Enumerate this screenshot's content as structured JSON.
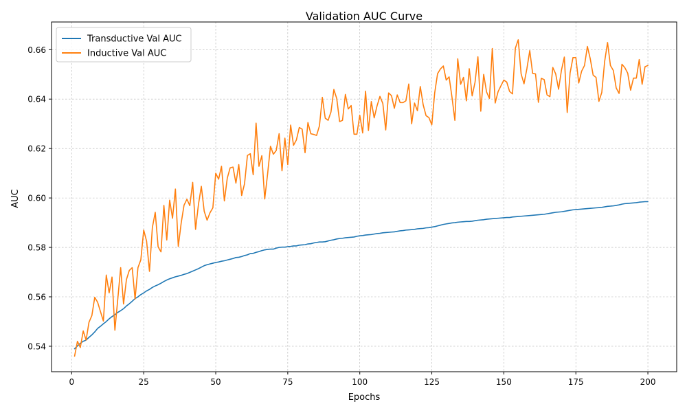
{
  "chart_data": {
    "type": "line",
    "title": "Validation AUC Curve",
    "xlabel": "Epochs",
    "ylabel": "AUC",
    "xlim": [
      -7,
      210
    ],
    "ylim": [
      0.5297,
      0.6712
    ],
    "xticks": [
      0,
      25,
      50,
      75,
      100,
      125,
      150,
      175,
      200
    ],
    "yticks": [
      0.54,
      0.56,
      0.58,
      0.6,
      0.62,
      0.64,
      0.66
    ],
    "ytick_labels": [
      "0.54",
      "0.56",
      "0.58",
      "0.60",
      "0.62",
      "0.64",
      "0.66"
    ],
    "grid": true,
    "legend_position": "upper-left",
    "series": [
      {
        "name": "Transductive Val AUC",
        "color": "#1f77b4",
        "x_start": 1,
        "x_step": 1,
        "values": [
          0.539,
          0.5401,
          0.5412,
          0.542,
          0.5425,
          0.5436,
          0.5446,
          0.5458,
          0.5472,
          0.5481,
          0.5491,
          0.55,
          0.5511,
          0.552,
          0.5528,
          0.5537,
          0.5544,
          0.5552,
          0.5563,
          0.5572,
          0.5582,
          0.5593,
          0.56,
          0.5609,
          0.5616,
          0.5624,
          0.563,
          0.5638,
          0.5644,
          0.5649,
          0.5655,
          0.5662,
          0.5668,
          0.5673,
          0.5677,
          0.5681,
          0.5684,
          0.5687,
          0.5691,
          0.5694,
          0.5699,
          0.5704,
          0.5709,
          0.5714,
          0.572,
          0.5726,
          0.573,
          0.5733,
          0.5736,
          0.5739,
          0.5741,
          0.5744,
          0.5746,
          0.5749,
          0.5752,
          0.5755,
          0.5759,
          0.576,
          0.5763,
          0.5767,
          0.577,
          0.5775,
          0.5776,
          0.578,
          0.5783,
          0.5787,
          0.579,
          0.5792,
          0.5793,
          0.5793,
          0.5797,
          0.58,
          0.5801,
          0.5801,
          0.5803,
          0.5804,
          0.5806,
          0.5806,
          0.5809,
          0.581,
          0.5811,
          0.5814,
          0.5815,
          0.5818,
          0.582,
          0.5822,
          0.5822,
          0.5823,
          0.5826,
          0.5829,
          0.5831,
          0.5834,
          0.5836,
          0.5837,
          0.5839,
          0.584,
          0.5841,
          0.5842,
          0.5845,
          0.5847,
          0.5848,
          0.585,
          0.5851,
          0.5852,
          0.5854,
          0.5856,
          0.5857,
          0.5859,
          0.586,
          0.5861,
          0.5862,
          0.5863,
          0.5865,
          0.5867,
          0.5868,
          0.587,
          0.5871,
          0.5872,
          0.5873,
          0.5875,
          0.5876,
          0.5877,
          0.5879,
          0.588,
          0.5882,
          0.5884,
          0.5887,
          0.589,
          0.5893,
          0.5895,
          0.5897,
          0.5899,
          0.59,
          0.5902,
          0.5903,
          0.5904,
          0.5905,
          0.5905,
          0.5906,
          0.5908,
          0.591,
          0.5911,
          0.5912,
          0.5914,
          0.5915,
          0.5916,
          0.5917,
          0.5918,
          0.5919,
          0.592,
          0.5921,
          0.5921,
          0.5923,
          0.5924,
          0.5925,
          0.5926,
          0.5927,
          0.5928,
          0.5929,
          0.593,
          0.5931,
          0.5932,
          0.5933,
          0.5934,
          0.5936,
          0.5938,
          0.594,
          0.5942,
          0.5943,
          0.5944,
          0.5946,
          0.5948,
          0.595,
          0.5952,
          0.5953,
          0.5954,
          0.5955,
          0.5956,
          0.5957,
          0.5958,
          0.5959,
          0.596,
          0.5961,
          0.5962,
          0.5964,
          0.5966,
          0.5967,
          0.5968,
          0.597,
          0.5972,
          0.5975,
          0.5977,
          0.5978,
          0.5979,
          0.598,
          0.5981,
          0.5983,
          0.5984,
          0.5985,
          0.5985
        ]
      },
      {
        "name": "Inductive Val AUC",
        "color": "#ff7f0e",
        "x_start": 1,
        "x_step": 1,
        "values": [
          0.536,
          0.542,
          0.5395,
          0.5462,
          0.5425,
          0.5497,
          0.5524,
          0.5598,
          0.5578,
          0.554,
          0.5502,
          0.5688,
          0.5616,
          0.568,
          0.5465,
          0.5591,
          0.5718,
          0.5571,
          0.567,
          0.5707,
          0.5718,
          0.5591,
          0.5718,
          0.575,
          0.587,
          0.5825,
          0.5703,
          0.588,
          0.5942,
          0.5802,
          0.5782,
          0.597,
          0.583,
          0.5991,
          0.5918,
          0.6036,
          0.5804,
          0.5898,
          0.5971,
          0.5995,
          0.5969,
          0.6063,
          0.5873,
          0.5974,
          0.6047,
          0.5946,
          0.591,
          0.594,
          0.596,
          0.61,
          0.6076,
          0.6128,
          0.5988,
          0.608,
          0.6122,
          0.6125,
          0.606,
          0.6135,
          0.601,
          0.6058,
          0.6172,
          0.6179,
          0.6094,
          0.6303,
          0.6128,
          0.6171,
          0.5996,
          0.6097,
          0.6209,
          0.6177,
          0.6192,
          0.626,
          0.611,
          0.6242,
          0.6135,
          0.6295,
          0.6213,
          0.6235,
          0.6285,
          0.6278,
          0.6183,
          0.6305,
          0.626,
          0.6257,
          0.6253,
          0.6292,
          0.6407,
          0.6323,
          0.6314,
          0.6348,
          0.6439,
          0.6402,
          0.6309,
          0.6314,
          0.6419,
          0.636,
          0.6374,
          0.6258,
          0.6258,
          0.6335,
          0.6263,
          0.6432,
          0.6273,
          0.639,
          0.6324,
          0.6373,
          0.6411,
          0.6382,
          0.6275,
          0.6425,
          0.6414,
          0.6363,
          0.6417,
          0.6386,
          0.6386,
          0.6393,
          0.6461,
          0.63,
          0.6384,
          0.6353,
          0.6451,
          0.6377,
          0.6333,
          0.6325,
          0.6296,
          0.6425,
          0.6503,
          0.6522,
          0.6534,
          0.6477,
          0.649,
          0.6408,
          0.6314,
          0.6563,
          0.646,
          0.6488,
          0.6393,
          0.6523,
          0.6413,
          0.6468,
          0.6571,
          0.6351,
          0.65,
          0.6429,
          0.6403,
          0.6605,
          0.6384,
          0.643,
          0.6454,
          0.6477,
          0.6469,
          0.6431,
          0.6421,
          0.6606,
          0.664,
          0.6502,
          0.6462,
          0.6523,
          0.6596,
          0.6504,
          0.6502,
          0.6387,
          0.6484,
          0.6479,
          0.6417,
          0.641,
          0.6528,
          0.6502,
          0.644,
          0.6517,
          0.657,
          0.6346,
          0.6506,
          0.6568,
          0.6568,
          0.6465,
          0.6513,
          0.6536,
          0.6613,
          0.6563,
          0.6497,
          0.6488,
          0.6391,
          0.6427,
          0.6553,
          0.6629,
          0.6536,
          0.6516,
          0.6445,
          0.6423,
          0.6541,
          0.6527,
          0.6505,
          0.6436,
          0.6485,
          0.6485,
          0.656,
          0.646,
          0.6531,
          0.6536
        ]
      }
    ]
  }
}
